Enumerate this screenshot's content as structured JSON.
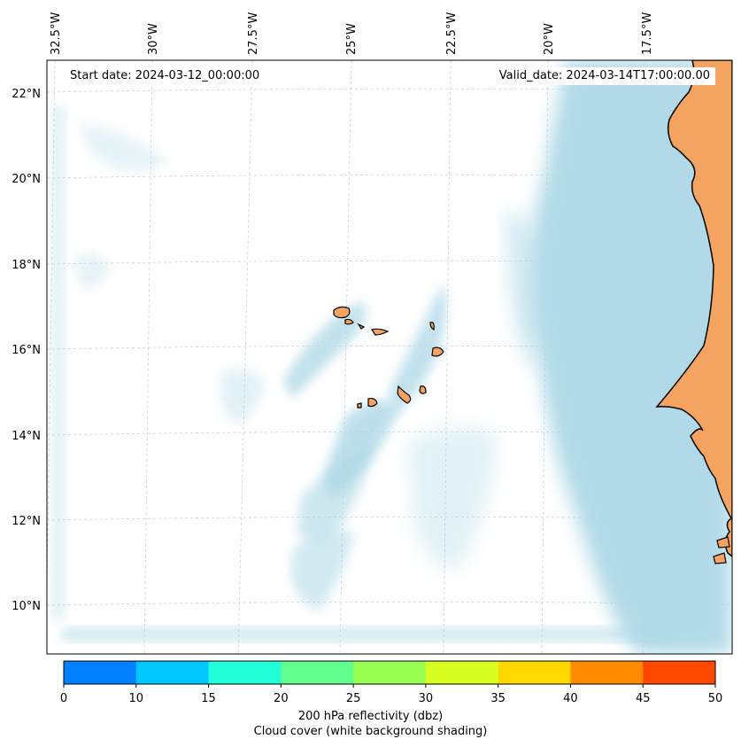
{
  "map": {
    "start_date": "Start date: 2024-03-12_00:00:00",
    "valid_date": "Valid_date: 2024-03-14T17:00:00.00",
    "lon_labels": [
      "32.5°W",
      "30°W",
      "27.5°W",
      "25°W",
      "22.5°W",
      "20°W",
      "17.5°W"
    ],
    "lat_labels": [
      "22°N",
      "20°N",
      "18°N",
      "16°N",
      "14°N",
      "12°N",
      "10°N"
    ],
    "colors": {
      "ocean": "#ffffff",
      "land": "#f4a460",
      "coast": "#000000",
      "cloud": "#add8e6",
      "grid": "#c8c8c8"
    }
  },
  "colorbar": {
    "title": "200 hPa reflectivity (dbz)",
    "subtitle": "Cloud cover (white background shading)",
    "ticks": [
      "0",
      "10",
      "15",
      "20",
      "25",
      "30",
      "35",
      "40",
      "45",
      "50"
    ],
    "colors": [
      "#0080ff",
      "#00c8ff",
      "#20ffd8",
      "#60ff90",
      "#98ff50",
      "#d8ff20",
      "#ffd800",
      "#ff8c00",
      "#ff4800"
    ]
  }
}
